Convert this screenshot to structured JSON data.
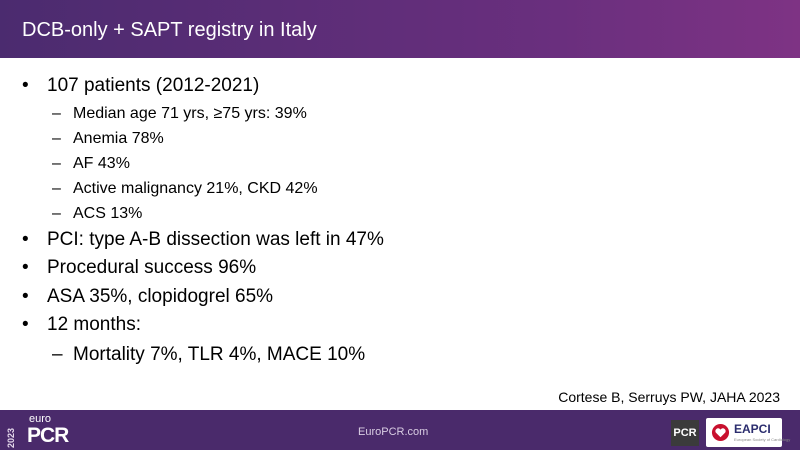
{
  "header": {
    "title": "DCB-only + SAPT registry in Italy"
  },
  "bullets": [
    {
      "text": "107 patients (2012-2021)",
      "subs": [
        "Median age 71 yrs, ≥75 yrs: 39%",
        "Anemia 78%",
        "AF 43%",
        "Active malignancy 21%, CKD 42%",
        "ACS 13%"
      ]
    },
    {
      "text": "PCI: type A-B dissection was left in 47%",
      "subs": []
    },
    {
      "text": "Procedural success 96%",
      "subs": []
    },
    {
      "text": "ASA 35%, clopidogrel 65%",
      "subs": []
    },
    {
      "text": "12 months:",
      "subs": [
        "Mortality 7%, TLR 4%, MACE 10%"
      ]
    }
  ],
  "citation": "Cortese B, Serruys PW, JAHA 2023",
  "footer": {
    "year": "2023",
    "euro": "euro",
    "brand": "PCR",
    "url": "EuroPCR.com",
    "logo1": "PCR",
    "logo2": "EAPCI",
    "logo2_sub": "European Society of Cardiology"
  }
}
